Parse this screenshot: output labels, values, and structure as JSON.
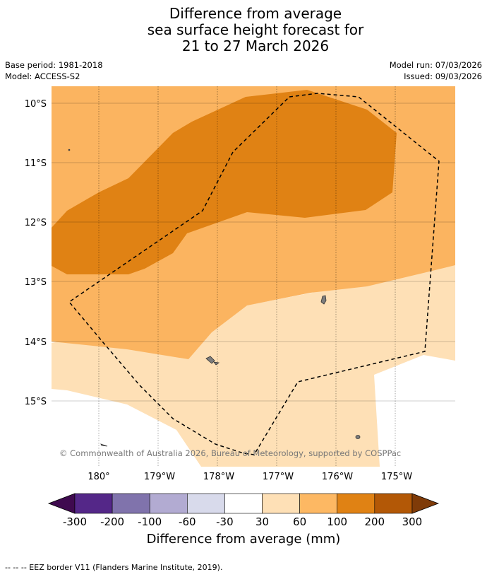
{
  "title": {
    "line1": "Difference from average",
    "line2": "sea surface height forecast for",
    "line3": "21 to 27 March 2026"
  },
  "meta": {
    "base_period": "Base period: 1981-2018",
    "model": "Model: ACCESS-S2",
    "model_run": "Model run: 07/03/2026",
    "issued": "Issued: 09/03/2026"
  },
  "map": {
    "lat_labels": [
      "10°S",
      "11°S",
      "12°S",
      "13°S",
      "14°S",
      "15°S"
    ],
    "lon_labels": [
      "180°",
      "179°W",
      "178°W",
      "177°W",
      "176°W",
      "175°W"
    ],
    "copyright": "© Commonwealth of Australia 2026, Bureau of Meteorology, supported by COSPPac",
    "extent": {
      "lon": [
        -180.8,
        -174.0
      ],
      "lat": [
        -9.7,
        -16.1
      ]
    },
    "shading": [
      {
        "range": "60 to 100",
        "color": "#fbb460"
      },
      {
        "range": "100 to 200",
        "color": "#e08214"
      },
      {
        "range": "30 to 60",
        "color": "#fee0b6"
      },
      {
        "range": "-30 to 30",
        "color": "#ffffff"
      }
    ]
  },
  "colorbar": {
    "colors": [
      "#3f0a4f",
      "#542788",
      "#8073ac",
      "#b2abd2",
      "#d8daeb",
      "#ffffff",
      "#fee0b6",
      "#fdb863",
      "#e08214",
      "#b35806",
      "#7f3b08"
    ],
    "tick_labels": [
      "-300",
      "-200",
      "-100",
      "-60",
      "-30",
      "30",
      "60",
      "100",
      "200",
      "300"
    ],
    "label": "Difference from average (mm)"
  },
  "footer": "--  --  -- EEZ border V11 (Flanders Marine Institute, 2019)."
}
